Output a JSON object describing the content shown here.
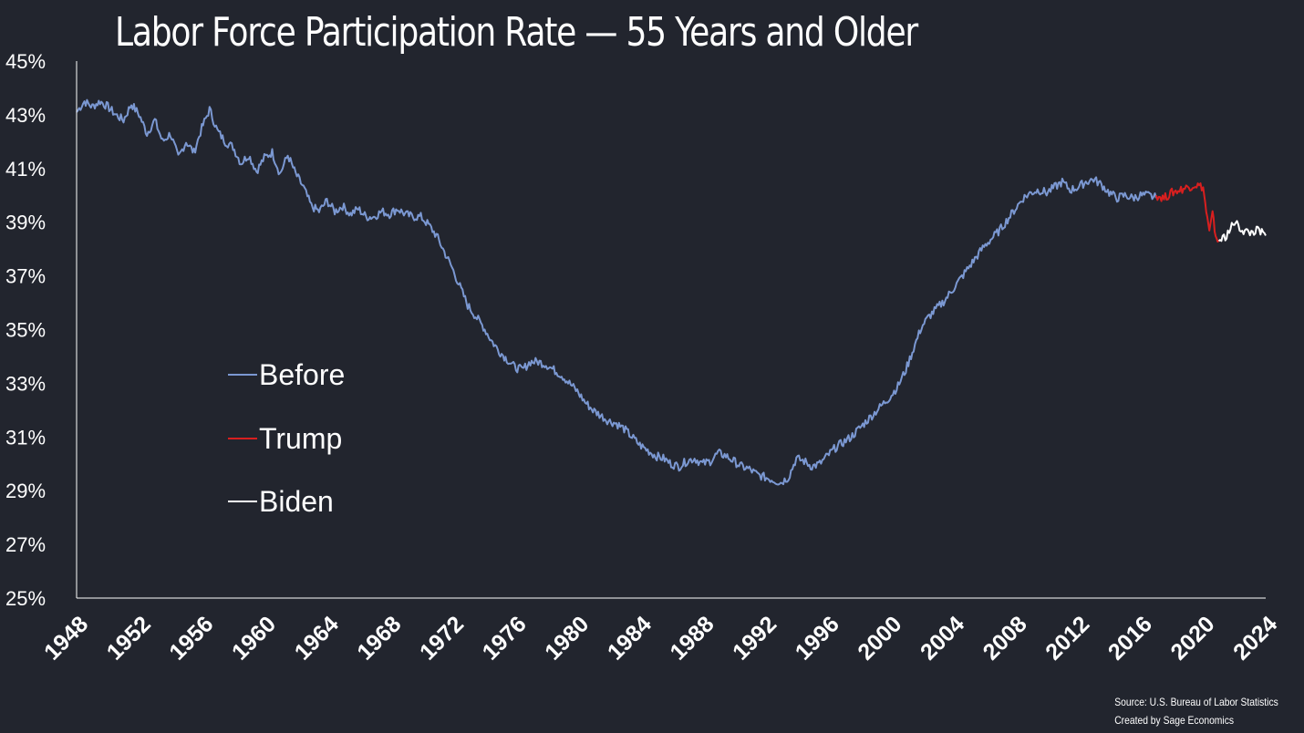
{
  "title": "Labor Force Participation Rate — 55 Years and Older",
  "source": {
    "line1": "Source: U.S. Bureau of Labor Statistics",
    "line2": "Created by Sage Economics"
  },
  "colors": {
    "background": "#22252e",
    "before": "#7b98d2",
    "trump": "#d81f1f",
    "biden": "#ffffff",
    "axis": "#ffffff"
  },
  "chart_data": {
    "type": "line",
    "title": "Labor Force Participation Rate — 55 Years and Older",
    "xlabel": "",
    "ylabel": "",
    "xlim": [
      1948,
      2024
    ],
    "ylim": [
      25,
      45
    ],
    "y_ticks": [
      "45%",
      "43%",
      "41%",
      "39%",
      "37%",
      "35%",
      "33%",
      "31%",
      "29%",
      "27%",
      "25%"
    ],
    "x_ticks": [
      "1948",
      "1952",
      "1956",
      "1960",
      "1964",
      "1968",
      "1972",
      "1976",
      "1980",
      "1984",
      "1988",
      "1992",
      "1996",
      "2000",
      "2004",
      "2008",
      "2012",
      "2016",
      "2020",
      "2024"
    ],
    "grid": false,
    "legend_position": "left-middle",
    "series": [
      {
        "name": "Before",
        "color": "#7b98d2",
        "x": [
          1948.0,
          1948.5,
          1949.0,
          1949.5,
          1950.0,
          1950.5,
          1951.0,
          1951.5,
          1952.0,
          1952.5,
          1953.0,
          1953.5,
          1954.0,
          1954.5,
          1955.0,
          1955.5,
          1956.0,
          1956.5,
          1957.0,
          1957.5,
          1958.0,
          1958.5,
          1959.0,
          1959.5,
          1960.0,
          1960.5,
          1961.0,
          1961.5,
          1962.0,
          1962.5,
          1963.0,
          1963.5,
          1964.0,
          1964.5,
          1965.0,
          1965.5,
          1966.0,
          1966.5,
          1967.0,
          1967.5,
          1968.0,
          1968.5,
          1969.0,
          1969.5,
          1970.0,
          1970.5,
          1971.0,
          1971.5,
          1972.0,
          1972.5,
          1973.0,
          1973.5,
          1974.0,
          1974.5,
          1975.0,
          1975.5,
          1976.0,
          1976.5,
          1977.0,
          1977.5,
          1978.0,
          1978.5,
          1979.0,
          1979.5,
          1980.0,
          1980.5,
          1981.0,
          1981.5,
          1982.0,
          1982.5,
          1983.0,
          1983.5,
          1984.0,
          1984.5,
          1985.0,
          1985.5,
          1986.0,
          1986.5,
          1987.0,
          1987.5,
          1988.0,
          1988.5,
          1989.0,
          1989.5,
          1990.0,
          1990.5,
          1991.0,
          1991.5,
          1992.0,
          1992.5,
          1993.0,
          1993.5,
          1994.0,
          1994.5,
          1995.0,
          1995.5,
          1996.0,
          1996.5,
          1997.0,
          1997.5,
          1998.0,
          1998.5,
          1999.0,
          1999.5,
          2000.0,
          2000.5,
          2001.0,
          2001.5,
          2002.0,
          2002.5,
          2003.0,
          2003.5,
          2004.0,
          2004.5,
          2005.0,
          2005.5,
          2006.0,
          2006.5,
          2007.0,
          2007.5,
          2008.0,
          2008.5,
          2009.0,
          2009.5,
          2010.0,
          2010.5,
          2011.0,
          2011.5,
          2012.0,
          2012.5,
          2013.0,
          2013.5,
          2014.0,
          2014.5,
          2015.0,
          2015.5,
          2016.0,
          2016.5,
          2017.0
        ],
        "values": [
          43.1,
          43.5,
          43.3,
          43.5,
          43.3,
          43.0,
          42.8,
          43.4,
          43.0,
          42.3,
          42.8,
          42.0,
          42.3,
          41.4,
          42.0,
          41.6,
          42.5,
          43.2,
          42.4,
          42.0,
          41.8,
          41.2,
          41.5,
          40.9,
          41.4,
          41.6,
          40.8,
          41.5,
          40.8,
          40.3,
          39.6,
          39.4,
          39.8,
          39.4,
          39.6,
          39.3,
          39.5,
          39.2,
          39.2,
          39.4,
          39.3,
          39.5,
          39.3,
          39.2,
          39.2,
          38.9,
          38.5,
          37.9,
          37.3,
          36.6,
          35.9,
          35.5,
          35.1,
          34.6,
          34.2,
          33.9,
          33.6,
          33.5,
          33.8,
          33.8,
          33.7,
          33.5,
          33.3,
          33.0,
          32.7,
          32.3,
          32.0,
          31.8,
          31.6,
          31.5,
          31.3,
          31.0,
          30.7,
          30.5,
          30.3,
          30.2,
          30.0,
          29.9,
          30.1,
          30.2,
          30.0,
          30.1,
          30.4,
          30.3,
          30.1,
          29.9,
          29.8,
          29.6,
          29.5,
          29.4,
          29.3,
          29.5,
          30.2,
          30.1,
          29.9,
          30.0,
          30.3,
          30.6,
          30.8,
          31.0,
          31.3,
          31.6,
          31.9,
          32.2,
          32.5,
          32.9,
          33.5,
          34.3,
          35.1,
          35.5,
          35.8,
          36.1,
          36.5,
          36.9,
          37.3,
          37.7,
          38.1,
          38.4,
          38.7,
          39.1,
          39.5,
          39.9,
          40.1,
          40.2,
          40.1,
          40.3,
          40.5,
          40.2,
          40.3,
          40.5,
          40.6,
          40.4,
          40.1,
          39.9,
          40.0,
          39.9,
          40.0,
          40.0,
          39.9
        ]
      },
      {
        "name": "Trump",
        "color": "#d81f1f",
        "x": [
          2017.0,
          2017.5,
          2018.0,
          2018.5,
          2019.0,
          2019.5,
          2020.0,
          2020.2,
          2020.4,
          2020.6,
          2020.8,
          2021.0
        ],
        "values": [
          40.0,
          39.9,
          40.1,
          40.2,
          40.3,
          40.4,
          40.3,
          39.4,
          38.6,
          39.3,
          38.5,
          38.3
        ]
      },
      {
        "name": "Biden",
        "color": "#ffffff",
        "x": [
          2021.0,
          2021.5,
          2022.0,
          2022.5,
          2023.0,
          2023.5,
          2024.0
        ],
        "values": [
          38.3,
          38.5,
          39.0,
          38.7,
          38.6,
          38.7,
          38.5
        ]
      }
    ]
  }
}
